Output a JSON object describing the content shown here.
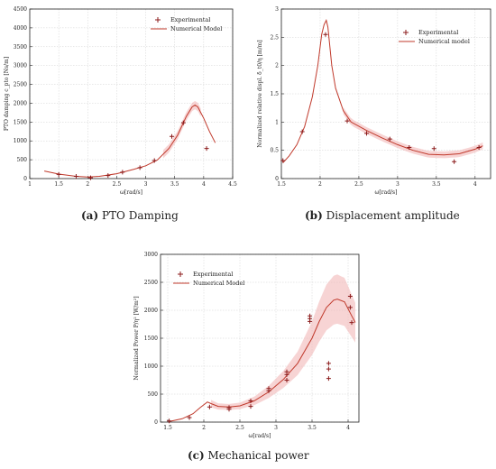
{
  "captions": {
    "a_label": "(a)",
    "a_text": "PTO Damping",
    "b_label": "(b)",
    "b_text": "Displacement amplitude",
    "c_label": "(c)",
    "c_text": "Mechanical power"
  },
  "colors": {
    "experimental": "#8b1a1a",
    "model": "#c0392b",
    "band": "#f2b8b8"
  },
  "chart_data": [
    {
      "id": "a",
      "type": "line",
      "xlabel": "ω[rad/s]",
      "ylabel": "PTO damping c_pto [Ns/m]",
      "xlim": [
        1.0,
        4.5
      ],
      "ylim": [
        0,
        4500
      ],
      "xticks": [
        1,
        1.5,
        2,
        2.5,
        3,
        3.5,
        4,
        4.5
      ],
      "xtick_labels": [
        "1",
        "1.5",
        "2",
        "2.5",
        "3",
        "3.5",
        "4",
        "4.5"
      ],
      "yticks": [
        0,
        500,
        1000,
        1500,
        2000,
        2500,
        3000,
        3500,
        4000,
        4500
      ],
      "legend": {
        "position": "top-right",
        "experimental": "Experimental",
        "model": "Numerical Model"
      },
      "experimental": {
        "x": [
          1.5,
          1.8,
          2.05,
          2.35,
          2.6,
          2.9,
          3.15,
          3.45,
          3.65,
          4.05
        ],
        "y": [
          110,
          60,
          20,
          80,
          170,
          290,
          480,
          1120,
          1480,
          800
        ]
      },
      "model": {
        "x": [
          1.25,
          1.5,
          1.8,
          2.0,
          2.2,
          2.5,
          2.8,
          3.0,
          3.2,
          3.4,
          3.55,
          3.7,
          3.8,
          3.85,
          3.9,
          4.0,
          4.1,
          4.2
        ],
        "y": [
          200,
          120,
          60,
          40,
          60,
          130,
          250,
          340,
          490,
          800,
          1150,
          1650,
          1900,
          1950,
          1900,
          1600,
          1250,
          950
        ]
      },
      "band": {
        "x_from": 3.3,
        "x_to": 3.95,
        "half_width": 110
      }
    },
    {
      "id": "b",
      "type": "line",
      "xlabel": "ω[rad/s]",
      "ylabel": "Normalized relative displ. δ_t0/η [m/m]",
      "xlim": [
        1.5,
        4.2
      ],
      "ylim": [
        0,
        3
      ],
      "xticks": [
        1.5,
        2,
        2.5,
        3,
        3.5,
        4
      ],
      "xtick_labels": [
        "1.5",
        "2",
        "2.5",
        "3",
        "3.5",
        "4"
      ],
      "yticks": [
        0,
        0.5,
        1,
        1.5,
        2,
        2.5,
        3
      ],
      "legend": {
        "position": "top-right",
        "experimental": "Experimental",
        "model": "Numerical model"
      },
      "experimental": {
        "x": [
          1.52,
          1.77,
          2.07,
          2.35,
          2.6,
          2.9,
          3.15,
          3.47,
          3.73,
          4.05
        ],
        "y": [
          0.32,
          0.83,
          2.55,
          1.02,
          0.8,
          0.7,
          0.55,
          0.53,
          0.3,
          0.55
        ]
      },
      "model": {
        "x": [
          1.52,
          1.6,
          1.7,
          1.8,
          1.9,
          1.97,
          2.02,
          2.05,
          2.08,
          2.1,
          2.15,
          2.2,
          2.3,
          2.4,
          2.6,
          2.8,
          3.0,
          3.2,
          3.4,
          3.6,
          3.8,
          4.0,
          4.1
        ],
        "y": [
          0.28,
          0.4,
          0.6,
          0.92,
          1.45,
          2.0,
          2.55,
          2.72,
          2.8,
          2.68,
          2.0,
          1.6,
          1.2,
          1.0,
          0.85,
          0.72,
          0.6,
          0.5,
          0.43,
          0.42,
          0.44,
          0.52,
          0.58
        ]
      },
      "band": {
        "x_from": 2.3,
        "x_to": 4.1,
        "half_width": 0.06
      }
    },
    {
      "id": "c",
      "type": "line",
      "xlabel": "ω[rad/s]",
      "ylabel": "Normalized Power P/η² [W/m²]",
      "xlim": [
        1.4,
        4.15
      ],
      "ylim": [
        0,
        3000
      ],
      "xticks": [
        1.5,
        2,
        2.5,
        3,
        3.5,
        4
      ],
      "xtick_labels": [
        "1.5",
        "2",
        "2.5",
        "3",
        "3.5",
        "4"
      ],
      "yticks": [
        0,
        500,
        1000,
        1500,
        2000,
        2500,
        3000
      ],
      "legend": {
        "position": "top-left",
        "experimental": "Experimental",
        "model": "Numerical Model"
      },
      "experimental": {
        "x": [
          1.52,
          1.8,
          2.08,
          2.35,
          2.35,
          2.65,
          2.65,
          2.9,
          2.9,
          3.15,
          3.15,
          3.15,
          3.47,
          3.47,
          3.47,
          3.73,
          3.73,
          3.73,
          4.03,
          4.03,
          4.05
        ],
        "y": [
          20,
          80,
          270,
          230,
          260,
          280,
          380,
          560,
          600,
          750,
          850,
          900,
          1800,
          1850,
          1900,
          1050,
          950,
          780,
          2250,
          2050,
          1780
        ]
      },
      "model": {
        "x": [
          1.52,
          1.7,
          1.85,
          1.95,
          2.05,
          2.1,
          2.2,
          2.35,
          2.5,
          2.7,
          2.9,
          3.1,
          3.3,
          3.5,
          3.6,
          3.7,
          3.8,
          3.85,
          3.95,
          4.05,
          4.1
        ],
        "y": [
          10,
          60,
          150,
          260,
          360,
          330,
          280,
          270,
          290,
          380,
          540,
          760,
          1050,
          1500,
          1800,
          2050,
          2180,
          2200,
          2150,
          1900,
          1780
        ]
      },
      "band": {
        "x_from": 2.1,
        "x_to": 4.1,
        "rel_width": 0.2
      }
    }
  ]
}
